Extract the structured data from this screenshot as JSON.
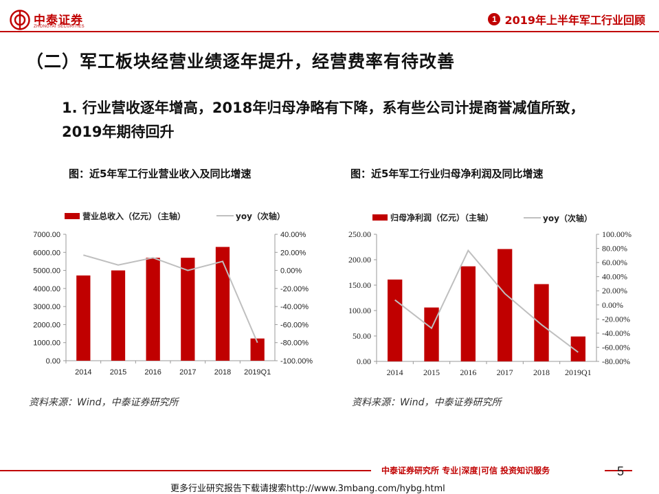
{
  "header": {
    "logo_cn": "中泰证券",
    "logo_en": "ZHONGTAI SECURITIES",
    "section_number": "1",
    "section_title": "2019年上半年军工行业回顾",
    "accent_color": "#c00000"
  },
  "main_heading": "（二）军工板块经营业绩逐年提升，经营费率有待改善",
  "sub_heading": "1. 行业营收逐年增高，2018年归母净略有下降，系有些公司计提商誉减值所致，2019年期待回升",
  "figures": {
    "fig1_title": "图：近5年军工行业营业收入及同比增速",
    "fig2_title": "图：近5年军工行业归母净利润及同比增速",
    "fig1_source": "资料来源：Wind，中泰证券研究所",
    "fig2_source": "资料来源：Wind，中泰证券研究所"
  },
  "chart_data": [
    {
      "type": "bar",
      "categories": [
        "2014",
        "2015",
        "2016",
        "2017",
        "2018",
        "2019Q1"
      ],
      "series": [
        {
          "name": "营业总收入（亿元）（主轴）",
          "type": "bar",
          "axis": "left",
          "color": "#c00000",
          "values": [
            4720,
            5000,
            5700,
            5700,
            6300,
            1230
          ]
        },
        {
          "name": "yoy（次轴）",
          "type": "line",
          "axis": "right",
          "color": "#bfbfbf",
          "values": [
            17,
            6,
            14,
            0,
            10,
            -80
          ]
        }
      ],
      "y_left": {
        "min": 0,
        "max": 7000,
        "ticks": [
          "0.00",
          "1000.00",
          "2000.00",
          "3000.00",
          "4000.00",
          "5000.00",
          "6000.00",
          "7000.00"
        ]
      },
      "y_right": {
        "min": -100,
        "max": 40,
        "ticks": [
          "-100.00%",
          "-80.00%",
          "-60.00%",
          "-40.00%",
          "-20.00%",
          "0.00%",
          "20.00%",
          "40.00%"
        ]
      },
      "legend_position": "top"
    },
    {
      "type": "bar",
      "categories": [
        "2014",
        "2015",
        "2016",
        "2017",
        "2018",
        "2019Q1"
      ],
      "series": [
        {
          "name": "归母净利润（亿元）（主轴）",
          "type": "bar",
          "axis": "left",
          "color": "#c00000",
          "values": [
            161,
            106,
            187,
            221,
            152,
            49
          ]
        },
        {
          "name": "yoy（次轴）",
          "type": "line",
          "axis": "right",
          "color": "#bfbfbf",
          "values": [
            7,
            -33,
            77,
            16,
            -28,
            -67
          ]
        }
      ],
      "y_left": {
        "min": 0,
        "max": 250,
        "ticks": [
          "0.00",
          "50.00",
          "100.00",
          "150.00",
          "200.00",
          "250.00"
        ]
      },
      "y_right": {
        "min": -80,
        "max": 100,
        "ticks": [
          "-80.00%",
          "-60.00%",
          "-40.00%",
          "-20.00%",
          "0.00%",
          "20.00%",
          "40.00%",
          "60.00%",
          "80.00%",
          "100.00%"
        ]
      },
      "legend_position": "top"
    }
  ],
  "footer": {
    "slogan": "中泰证券研究所 专业|深度|可信 投资知识服务",
    "page_number": "5",
    "note": "更多行业研究报告下载请搜索http://www.3mbang.com/hybg.html"
  }
}
